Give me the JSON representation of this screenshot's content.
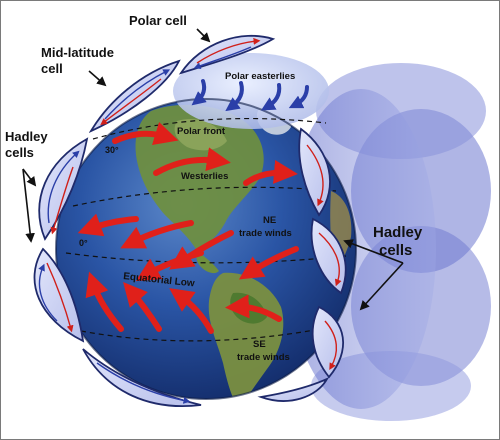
{
  "title": "",
  "labels": {
    "polar_cell": "Polar cell",
    "mid_latitude_line1": "Mid-latitude",
    "mid_latitude_line2": "cell",
    "hadley_left_line1": "Hadley",
    "hadley_left_line2": "cells",
    "hadley_right_line1": "Hadley",
    "hadley_right_line2": "cells",
    "polar_easterlies": "Polar easterlies",
    "polar_front": "Polar front",
    "westerlies": "Westerlies",
    "ne_trade_line1": "NE",
    "ne_trade_line2": "trade winds",
    "equatorial_low": "Equatorial Low",
    "se_trade_line1": "SE",
    "se_trade_line2": "trade winds",
    "lat_30": "30°",
    "lat_0": "0°"
  },
  "colors": {
    "wind_arrow": "#e0201a",
    "easterly_arrow": "#2b3fa8",
    "cell_fill": "#c9cff0",
    "cell_stroke": "#1f2a6b",
    "ocean": "#1d3f8f",
    "land": "#6a8a3a"
  }
}
